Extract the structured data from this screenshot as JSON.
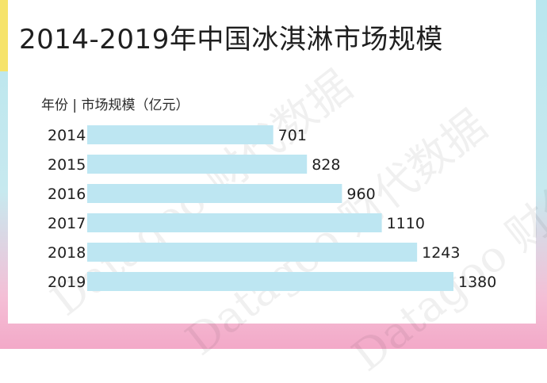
{
  "title": "2014-2019年中国冰淇淋市场规模",
  "subtitle": "年份 | 市场规模（亿元）",
  "watermark": "Datagoo 财代数据",
  "colors": {
    "bar": "#bde6f2",
    "background_top": "#b9e6ee",
    "background_bottom": "#f3a9c8",
    "accent": "#f6e36a"
  },
  "chart_data": {
    "type": "bar",
    "orientation": "horizontal",
    "title": "2014-2019年中国冰淇淋市场规模",
    "ylabel": "年份",
    "xlabel": "市场规模（亿元）",
    "categories": [
      "2014",
      "2015",
      "2016",
      "2017",
      "2018",
      "2019"
    ],
    "values": [
      701,
      828,
      960,
      1110,
      1243,
      1380
    ],
    "value_labels": [
      "701",
      "828",
      "960",
      "1110",
      "1243",
      "1380"
    ],
    "xlim": [
      0,
      1380
    ],
    "grid": false,
    "legend": "none"
  }
}
